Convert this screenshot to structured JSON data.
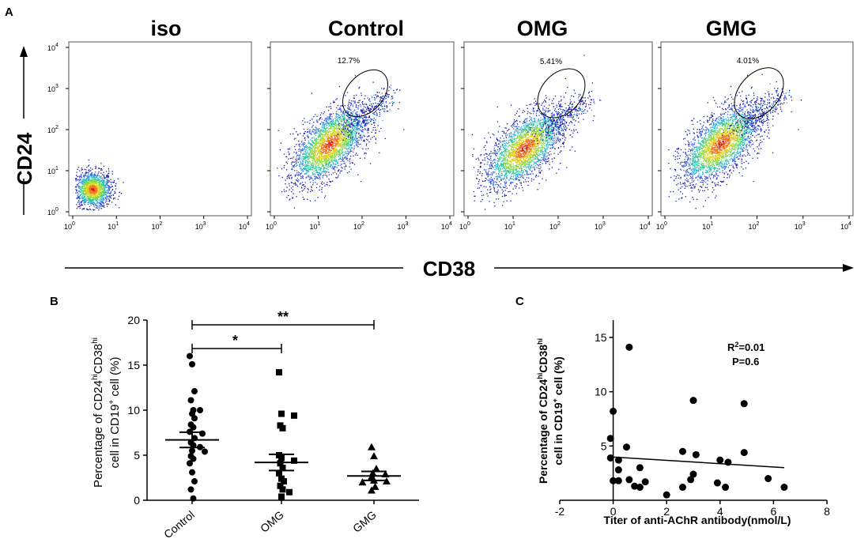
{
  "figure": {
    "panel_a_label": "A",
    "panel_b_label": "B",
    "panel_c_label": "C"
  },
  "chart_data": [
    {
      "type": "scatter",
      "panel": "A",
      "subtype": "flow-cytometry-density-plots",
      "shared_ylabel": "CD24",
      "shared_xlabel": "CD38",
      "x_scale": "log",
      "y_scale": "log",
      "xlim": [
        1,
        10000
      ],
      "ylim": [
        1,
        10000
      ],
      "tick_labels": [
        "10",
        "10",
        "10",
        "10",
        "10"
      ],
      "tick_exponents": [
        "0",
        "1",
        "2",
        "3",
        "4"
      ],
      "plots": [
        {
          "title": "iso",
          "gate_percent": "",
          "gate_shown": false,
          "cluster_center_log": [
            0.45,
            0.55
          ]
        },
        {
          "title": "Control",
          "gate_percent": "12.7%",
          "gate_shown": true,
          "cluster_center_log": [
            1.25,
            1.65
          ]
        },
        {
          "title": "OMG",
          "gate_percent": "5.41%",
          "gate_shown": true,
          "cluster_center_log": [
            1.25,
            1.55
          ]
        },
        {
          "title": "GMG",
          "gate_percent": "4.01%",
          "gate_shown": true,
          "cluster_center_log": [
            1.2,
            1.65
          ]
        }
      ]
    },
    {
      "type": "scatter",
      "panel": "B",
      "subtype": "dot-plot-mean-sem",
      "categories": [
        "Control",
        "OMG",
        "GMG"
      ],
      "ylabel_line1": "Percentage of CD24",
      "ylabel_sup1": "hi",
      "ylabel_mid1": "CD38",
      "ylabel_sup2": "hi",
      "ylabel_line2": "cell in CD19",
      "ylabel_sup3": "+",
      "ylabel_end": " cell (%)",
      "ylim": [
        0,
        20
      ],
      "yticks": [
        0,
        5,
        10,
        15,
        20
      ],
      "series": [
        {
          "name": "Control",
          "marker": "circle",
          "mean": 6.7,
          "sem": 0.85,
          "values": [
            16,
            15.1,
            12.1,
            11.1,
            10,
            10,
            9.6,
            9.1,
            8.4,
            8.1,
            7.6,
            7.4,
            6.9,
            6.4,
            6.1,
            5.9,
            5.5,
            5.4,
            4.9,
            4.6,
            4.1,
            3.1,
            2.1,
            1.2,
            0.2
          ]
        },
        {
          "name": "OMG",
          "marker": "square",
          "mean": 4.2,
          "sem": 0.9,
          "values": [
            14.2,
            9.6,
            9.4,
            8.3,
            8,
            5,
            4.7,
            4.4,
            4.1,
            3.6,
            3,
            2.4,
            2.1,
            1.6,
            1.2,
            0.9,
            0.4
          ]
        },
        {
          "name": "GMG",
          "marker": "triangle",
          "mean": 2.7,
          "sem": 0.5,
          "values": [
            5.9,
            4.9,
            3.5,
            3,
            2.9,
            2.6,
            2.2,
            2.1,
            2,
            1.5,
            1.1
          ]
        }
      ],
      "significance": [
        {
          "from": "Control",
          "to": "OMG",
          "label": "*"
        },
        {
          "from": "Control",
          "to": "GMG",
          "label": "**"
        }
      ]
    },
    {
      "type": "scatter",
      "panel": "C",
      "subtype": "correlation",
      "xlabel": "Titer of anti-AChR antibody(nmol/L)",
      "ylabel_line1": "Percentage of CD24",
      "ylabel_sup1": "hi",
      "ylabel_mid1": "CD38",
      "ylabel_sup2": "hi",
      "ylabel_line2": "cell in CD19",
      "ylabel_sup3": "+",
      "ylabel_end": " cell (%)",
      "xlim": [
        -2,
        8
      ],
      "ylim": [
        0,
        15
      ],
      "xticks": [
        -2,
        0,
        2,
        4,
        6,
        8
      ],
      "yticks": [
        5,
        10,
        15
      ],
      "annotation_r2_prefix": "R",
      "annotation_r2_sup": "2",
      "annotation_r2_value": "=0.01",
      "annotation_p": "P=0.6",
      "regression": {
        "x0": -0.1,
        "y0": 4.0,
        "x1": 6.4,
        "y1": 3.0
      },
      "points": [
        {
          "x": -0.1,
          "y": 5.7
        },
        {
          "x": -0.1,
          "y": 3.9
        },
        {
          "x": 0.0,
          "y": 1.8
        },
        {
          "x": 0.2,
          "y": 1.8
        },
        {
          "x": 0.0,
          "y": 8.2
        },
        {
          "x": 0.2,
          "y": 2.8
        },
        {
          "x": 0.2,
          "y": 3.7
        },
        {
          "x": 0.6,
          "y": 14.1
        },
        {
          "x": 0.5,
          "y": 4.9
        },
        {
          "x": 0.6,
          "y": 1.9
        },
        {
          "x": 0.8,
          "y": 1.3
        },
        {
          "x": 1.0,
          "y": 1.2
        },
        {
          "x": 1.0,
          "y": 3.0
        },
        {
          "x": 1.2,
          "y": 1.7
        },
        {
          "x": 2.0,
          "y": 0.5
        },
        {
          "x": 2.6,
          "y": 1.2
        },
        {
          "x": 2.6,
          "y": 4.5
        },
        {
          "x": 2.9,
          "y": 1.9
        },
        {
          "x": 3.0,
          "y": 2.4
        },
        {
          "x": 3.0,
          "y": 9.2
        },
        {
          "x": 3.1,
          "y": 4.2
        },
        {
          "x": 3.9,
          "y": 1.6
        },
        {
          "x": 4.0,
          "y": 3.7
        },
        {
          "x": 4.2,
          "y": 1.2
        },
        {
          "x": 4.3,
          "y": 3.5
        },
        {
          "x": 4.9,
          "y": 8.9
        },
        {
          "x": 4.9,
          "y": 4.4
        },
        {
          "x": 5.8,
          "y": 2.0
        },
        {
          "x": 6.4,
          "y": 1.2
        }
      ]
    }
  ]
}
